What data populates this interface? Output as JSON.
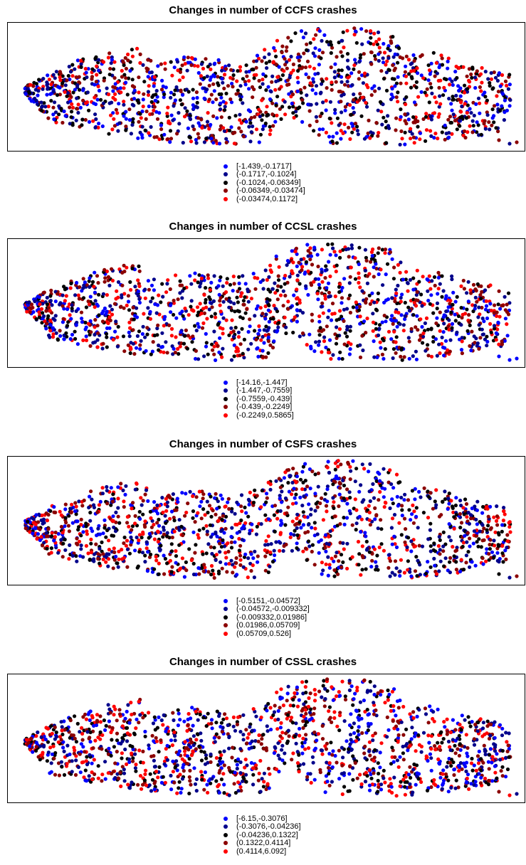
{
  "panels": [
    {
      "title": "Changes in number of CCFS crashes",
      "legend": [
        {
          "label": "[-1.439,-0.1717]",
          "color": "#0000ff"
        },
        {
          "label": "(-0.1717,-0.1024]",
          "color": "#00008b"
        },
        {
          "label": "(-0.1024,-0.06349]",
          "color": "#000000"
        },
        {
          "label": "(-0.06349,-0.03474]",
          "color": "#8b0000"
        },
        {
          "label": "(-0.03474,0.1172]",
          "color": "#ff0000"
        }
      ]
    },
    {
      "title": "Changes in number of CCSL crashes",
      "legend": [
        {
          "label": "[-14.16,-1.447]",
          "color": "#0000ff"
        },
        {
          "label": "(-1.447,-0.7559]",
          "color": "#00008b"
        },
        {
          "label": "(-0.7559,-0.439]",
          "color": "#000000"
        },
        {
          "label": "(-0.439,-0.2249]",
          "color": "#8b0000"
        },
        {
          "label": "(-0.2249,0.5865]",
          "color": "#ff0000"
        }
      ]
    },
    {
      "title": "Changes in number of CSFS crashes",
      "legend": [
        {
          "label": "[-0.5151,-0.04572]",
          "color": "#0000ff"
        },
        {
          "label": "(-0.04572,-0.009332]",
          "color": "#00008b"
        },
        {
          "label": "(-0.009332,0.01986]",
          "color": "#000000"
        },
        {
          "label": "(0.01986,0.05709]",
          "color": "#8b0000"
        },
        {
          "label": "(0.05709,0.526]",
          "color": "#ff0000"
        }
      ]
    },
    {
      "title": "Changes in number of CSSL crashes",
      "legend": [
        {
          "label": "[-6.15,-0.3076]",
          "color": "#0000ff"
        },
        {
          "label": "(-0.3076,-0.04236]",
          "color": "#00008b"
        },
        {
          "label": "(-0.04236,0.1322]",
          "color": "#000000"
        },
        {
          "label": "(0.1322,0.4114]",
          "color": "#8b0000"
        },
        {
          "label": "(0.4114,6.092]",
          "color": "#ff0000"
        }
      ]
    }
  ]
}
